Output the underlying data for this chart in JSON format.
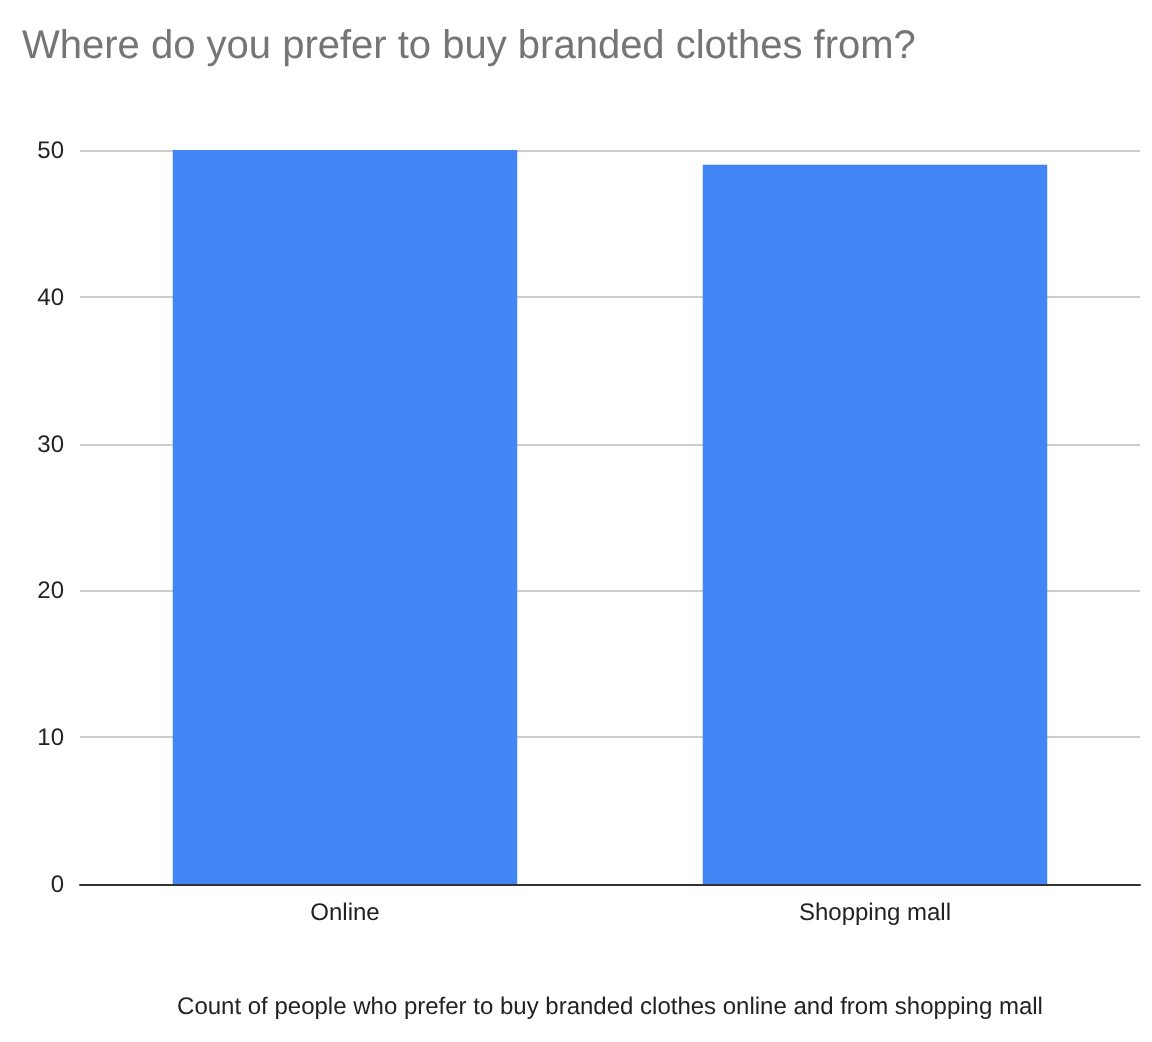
{
  "chart_data": {
    "type": "bar",
    "title": "Where do you prefer to buy branded clothes from?",
    "xlabel": "Count of people who prefer to buy branded clothes online and from shopping mall",
    "categories": [
      "Online",
      "Shopping mall"
    ],
    "values": [
      50,
      49
    ],
    "color": "#4285f4",
    "ylim": [
      0,
      50
    ],
    "yticks": [
      0,
      10,
      20,
      30,
      40,
      50
    ],
    "grid": "y"
  }
}
